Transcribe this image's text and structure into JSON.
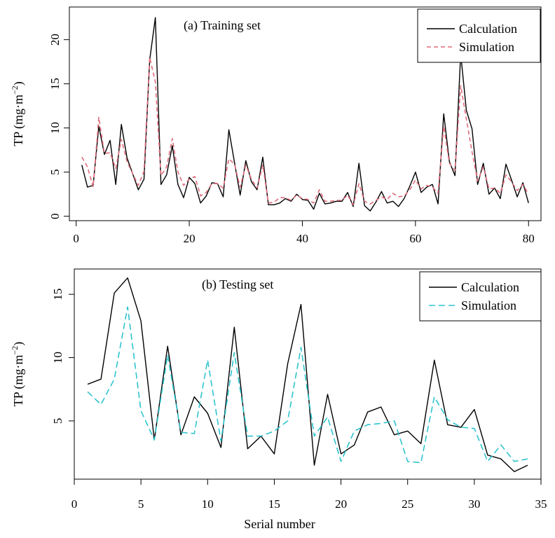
{
  "chart_data": [
    {
      "type": "line",
      "title": "(a) Training set",
      "xlabel": "",
      "ylabel": "TP (mg·m⁻²)",
      "ylabel_base": "TP (mg·m",
      "ylabel_sup": "−2",
      "ylabel_close": ")",
      "xlim": [
        -1.2,
        82.2
      ],
      "ylim": [
        -0.5,
        23.7
      ],
      "xticks": [
        0,
        20,
        40,
        60,
        80
      ],
      "yticks": [
        0,
        5,
        10,
        15,
        20
      ],
      "legend_position": "top-right",
      "x": [
        1,
        2,
        3,
        4,
        5,
        6,
        7,
        8,
        9,
        10,
        11,
        12,
        13,
        14,
        15,
        16,
        17,
        18,
        19,
        20,
        21,
        22,
        23,
        24,
        25,
        26,
        27,
        28,
        29,
        30,
        31,
        32,
        33,
        34,
        35,
        36,
        37,
        38,
        39,
        40,
        41,
        42,
        43,
        44,
        45,
        46,
        47,
        48,
        49,
        50,
        51,
        52,
        53,
        54,
        55,
        56,
        57,
        58,
        59,
        60,
        61,
        62,
        63,
        64,
        65,
        66,
        67,
        68,
        69,
        70,
        71,
        72,
        73,
        74,
        75,
        76,
        77,
        78,
        79,
        80
      ],
      "series": [
        {
          "name": "Calculation",
          "color": "#000000",
          "dash": "solid",
          "values": [
            5.8,
            3.3,
            3.5,
            10.2,
            7.0,
            8.6,
            3.6,
            10.4,
            6.6,
            4.8,
            3.0,
            4.2,
            17.7,
            22.5,
            3.6,
            4.7,
            8.0,
            3.6,
            2.1,
            4.4,
            3.7,
            1.5,
            2.3,
            3.8,
            3.7,
            2.2,
            9.8,
            6.1,
            2.4,
            6.3,
            3.9,
            3.0,
            6.7,
            1.3,
            1.3,
            1.5,
            2.0,
            1.7,
            2.5,
            1.9,
            1.8,
            0.8,
            2.6,
            1.4,
            1.5,
            1.7,
            1.7,
            2.7,
            1.1,
            6.0,
            1.2,
            0.6,
            1.6,
            2.8,
            1.5,
            1.7,
            1.1,
            2.0,
            3.4,
            5.0,
            2.7,
            3.3,
            3.6,
            1.4,
            11.6,
            6.2,
            4.6,
            18.4,
            12.0,
            9.9,
            3.6,
            6.0,
            2.5,
            3.2,
            2.0,
            5.9,
            4.1,
            2.2,
            3.8,
            1.5
          ]
        },
        {
          "name": "Simulation",
          "color": "#e06c7b",
          "dash": "dashed",
          "values": [
            6.7,
            5.6,
            3.3,
            11.2,
            7.1,
            7.2,
            5.4,
            8.7,
            6.2,
            4.8,
            3.5,
            5.1,
            18.0,
            15.2,
            4.6,
            5.6,
            8.8,
            5.0,
            3.5,
            4.2,
            4.5,
            2.3,
            2.7,
            3.7,
            3.7,
            3.2,
            6.5,
            5.9,
            3.3,
            5.8,
            4.2,
            3.2,
            5.8,
            1.5,
            1.6,
            2.1,
            2.1,
            1.8,
            2.4,
            2.0,
            1.9,
            1.5,
            3.0,
            1.7,
            1.7,
            1.8,
            1.8,
            2.4,
            1.3,
            3.7,
            1.7,
            1.4,
            1.8,
            2.2,
            1.9,
            2.6,
            2.2,
            2.3,
            3.0,
            4.1,
            3.1,
            3.5,
            3.3,
            2.6,
            10.2,
            6.0,
            5.2,
            14.8,
            11.0,
            7.3,
            4.0,
            5.6,
            3.1,
            3.2,
            2.6,
            4.7,
            3.9,
            2.9,
            3.6,
            2.5
          ]
        }
      ]
    },
    {
      "type": "line",
      "title": "(b) Testing set",
      "xlabel": "Serial number",
      "ylabel": "TP (mg·m⁻²)",
      "ylabel_base": "TP (mg·m",
      "ylabel_sup": "−2",
      "ylabel_close": ")",
      "xlim": [
        0,
        35
      ],
      "ylim": [
        0.4,
        17.0
      ],
      "xticks": [
        0,
        5,
        10,
        15,
        20,
        25,
        30,
        35
      ],
      "yticks": [
        5,
        10,
        15
      ],
      "legend_position": "top-right",
      "x": [
        1,
        2,
        3,
        4,
        5,
        6,
        7,
        8,
        9,
        10,
        11,
        12,
        13,
        14,
        15,
        16,
        17,
        18,
        19,
        20,
        21,
        22,
        23,
        24,
        25,
        26,
        27,
        28,
        29,
        30,
        31,
        32,
        33,
        34
      ],
      "series": [
        {
          "name": "Calculation",
          "color": "#000000",
          "dash": "solid",
          "values": [
            7.9,
            8.3,
            15.1,
            16.3,
            12.9,
            3.5,
            10.9,
            3.9,
            6.9,
            5.6,
            2.9,
            12.4,
            2.8,
            3.8,
            2.4,
            9.5,
            14.2,
            1.5,
            7.1,
            2.4,
            3.1,
            5.7,
            6.1,
            3.9,
            4.2,
            3.2,
            9.8,
            4.7,
            4.5,
            5.9,
            2.3,
            2.0,
            1.0,
            1.5
          ]
        },
        {
          "name": "Simulation",
          "color": "#2ec4cf",
          "dash": "dashed",
          "values": [
            7.3,
            6.3,
            8.3,
            14.0,
            5.8,
            3.5,
            10.2,
            4.1,
            4.0,
            9.8,
            3.4,
            10.4,
            3.8,
            3.8,
            4.2,
            5.0,
            10.8,
            3.8,
            5.3,
            1.8,
            4.2,
            4.7,
            4.8,
            5.0,
            1.8,
            1.7,
            6.9,
            5.1,
            4.5,
            4.4,
            1.8,
            3.1,
            1.8,
            2.0
          ]
        }
      ]
    }
  ]
}
